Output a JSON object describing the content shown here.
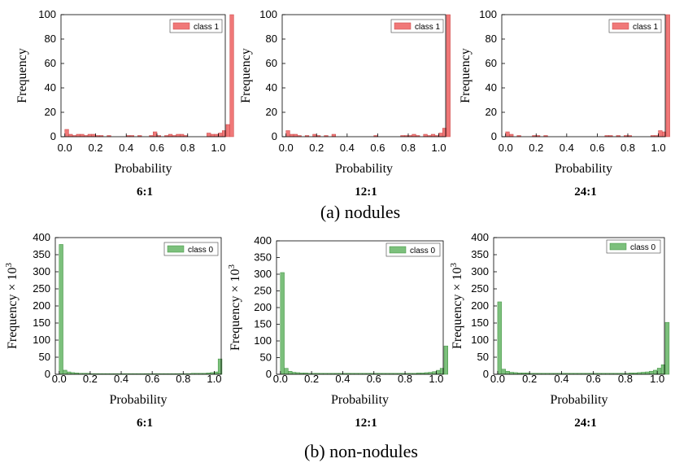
{
  "sections": [
    {
      "label": "(a) nodules"
    },
    {
      "label": "(b) non-nodules"
    }
  ],
  "colors": {
    "class1": "#f07878",
    "class0": "#7cc07c",
    "class1_edge": "#c94848",
    "class0_edge": "#3f8f3f"
  },
  "chart_data": [
    {
      "type": "bar",
      "id": "nod6",
      "ratio_label": "6:1",
      "xlabel": "Probability",
      "ylabel": "Frequency",
      "xlim": [
        -0.025,
        1.045
      ],
      "ylim": [
        0,
        100
      ],
      "xticks": [
        "0.0",
        "0.2",
        "0.4",
        "0.6",
        "0.8",
        "1.0"
      ],
      "yticks": [
        "0",
        "20",
        "40",
        "60",
        "80",
        "100"
      ],
      "legend": {
        "label": "class 1",
        "position": "top-right"
      },
      "bin_width": 0.025,
      "values": [
        6,
        2,
        1,
        2,
        2,
        1,
        2,
        2,
        1,
        1,
        0,
        1,
        0,
        0,
        0,
        0,
        1,
        1,
        0,
        1,
        0,
        0,
        1,
        4,
        1,
        0,
        1,
        2,
        1,
        2,
        2,
        1,
        0,
        0,
        0,
        0,
        0,
        3,
        2,
        2,
        3,
        5,
        10,
        100
      ]
    },
    {
      "type": "bar",
      "id": "nod12",
      "ratio_label": "12:1",
      "xlabel": "Probability",
      "ylabel": "Frequency",
      "xlim": [
        -0.025,
        1.045
      ],
      "ylim": [
        0,
        100
      ],
      "xticks": [
        "0.0",
        "0.2",
        "0.4",
        "0.6",
        "0.8",
        "1.0"
      ],
      "yticks": [
        "0",
        "20",
        "40",
        "60",
        "80",
        "100"
      ],
      "legend": {
        "label": "class 1",
        "position": "top-right"
      },
      "bin_width": 0.025,
      "values": [
        5,
        2,
        2,
        1,
        0,
        1,
        0,
        2,
        1,
        0,
        1,
        0,
        2,
        0,
        0,
        0,
        0,
        0,
        0,
        0,
        0,
        0,
        0,
        1,
        0,
        0,
        0,
        0,
        0,
        0,
        1,
        1,
        1,
        2,
        1,
        0,
        2,
        1,
        2,
        1,
        3,
        7,
        100
      ]
    },
    {
      "type": "bar",
      "id": "nod24",
      "ratio_label": "24:1",
      "xlabel": "Probability",
      "ylabel": "Frequency",
      "xlim": [
        -0.025,
        1.045
      ],
      "ylim": [
        0,
        100
      ],
      "xticks": [
        "0.0",
        "0.2",
        "0.4",
        "0.6",
        "0.8",
        "1.0"
      ],
      "yticks": [
        "0",
        "20",
        "40",
        "60",
        "80",
        "100"
      ],
      "legend": {
        "label": "class 1",
        "position": "top-right"
      },
      "bin_width": 0.025,
      "values": [
        4,
        2,
        0,
        1,
        0,
        0,
        0,
        1,
        1,
        0,
        1,
        0,
        0,
        0,
        0,
        0,
        0,
        0,
        0,
        0,
        0,
        0,
        0,
        0,
        0,
        0,
        1,
        1,
        0,
        1,
        0,
        1,
        1,
        0,
        0,
        0,
        0,
        0,
        1,
        1,
        5,
        4,
        100
      ]
    },
    {
      "type": "bar",
      "id": "non6",
      "ratio_label": "6:1",
      "xlabel": "Probability",
      "ylabel": "Frequency × 10",
      "ylabel_sup": "3",
      "xlim": [
        -0.025,
        1.045
      ],
      "ylim": [
        0,
        400
      ],
      "xticks": [
        "0.0",
        "0.2",
        "0.4",
        "0.6",
        "0.8",
        "1.0"
      ],
      "yticks": [
        "0",
        "50",
        "100",
        "150",
        "200",
        "250",
        "300",
        "350",
        "400"
      ],
      "legend": {
        "label": "class 0",
        "position": "top-right"
      },
      "bin_width": 0.025,
      "values": [
        380,
        12,
        7,
        5,
        4,
        3,
        3,
        3,
        2,
        2,
        2,
        2,
        2,
        2,
        2,
        2,
        2,
        2,
        2,
        2,
        2,
        2,
        2,
        2,
        2,
        2,
        2,
        2,
        2,
        2,
        2,
        2,
        2,
        2,
        3,
        3,
        3,
        3,
        4,
        5,
        7,
        45
      ]
    },
    {
      "type": "bar",
      "id": "non12",
      "ratio_label": "12:1",
      "xlabel": "Probability",
      "ylabel": "Frequency × 10",
      "ylabel_sup": "3",
      "xlim": [
        -0.025,
        1.045
      ],
      "ylim": [
        0,
        400
      ],
      "xticks": [
        "0.0",
        "0.2",
        "0.4",
        "0.6",
        "0.8",
        "1.0"
      ],
      "yticks": [
        "0",
        "50",
        "100",
        "150",
        "200",
        "250",
        "300",
        "350",
        "400"
      ],
      "legend": {
        "label": "class 0",
        "position": "top-right"
      },
      "bin_width": 0.025,
      "values": [
        305,
        18,
        9,
        6,
        5,
        4,
        4,
        3,
        3,
        3,
        3,
        3,
        3,
        3,
        3,
        3,
        3,
        3,
        3,
        3,
        3,
        3,
        3,
        3,
        3,
        3,
        3,
        3,
        3,
        3,
        3,
        3,
        3,
        3,
        3,
        4,
        4,
        5,
        6,
        8,
        12,
        18,
        85
      ]
    },
    {
      "type": "bar",
      "id": "non24",
      "ratio_label": "24:1",
      "xlabel": "Probability",
      "ylabel": "Frequency × 10",
      "ylabel_sup": "3",
      "xlim": [
        -0.025,
        1.045
      ],
      "ylim": [
        0,
        400
      ],
      "xticks": [
        "0.0",
        "0.2",
        "0.4",
        "0.6",
        "0.8",
        "1.0"
      ],
      "yticks": [
        "0",
        "50",
        "100",
        "150",
        "200",
        "250",
        "300",
        "350",
        "400"
      ],
      "legend": {
        "label": "class 0",
        "position": "top-right"
      },
      "bin_width": 0.025,
      "values": [
        212,
        15,
        9,
        6,
        5,
        4,
        4,
        4,
        3,
        3,
        3,
        3,
        3,
        3,
        3,
        3,
        3,
        3,
        3,
        3,
        3,
        3,
        3,
        3,
        3,
        3,
        3,
        3,
        3,
        3,
        3,
        3,
        3,
        4,
        4,
        5,
        6,
        7,
        9,
        12,
        18,
        28,
        152
      ]
    }
  ]
}
